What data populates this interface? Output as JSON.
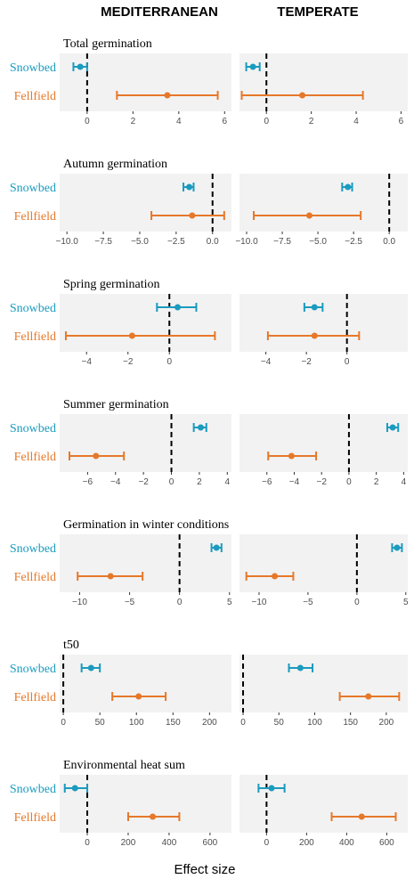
{
  "chart_data": {
    "type": "forest",
    "columns": [
      "MEDITERRANEAN",
      "TEMPERATE"
    ],
    "xlabel": "Effect size",
    "categories": [
      "Snowbed",
      "Fellfield"
    ],
    "colors": {
      "Snowbed": "#1a9bbf",
      "Fellfield": "#e6782a"
    },
    "reference_line": 0,
    "panels": [
      {
        "title": "Total germination",
        "MEDITERRANEAN": {
          "xlim": [
            -1.2,
            6.3
          ],
          "ticks": [
            0,
            2,
            4,
            6
          ],
          "Snowbed": {
            "est": -0.3,
            "lo": -0.6,
            "hi": 0.0
          },
          "Fellfield": {
            "est": 3.5,
            "lo": 1.3,
            "hi": 5.7
          }
        },
        "TEMPERATE": {
          "xlim": [
            -1.2,
            6.3
          ],
          "ticks": [
            0,
            2,
            4,
            6
          ],
          "Snowbed": {
            "est": -0.6,
            "lo": -0.9,
            "hi": -0.3
          },
          "Fellfield": {
            "est": 1.6,
            "lo": -1.1,
            "hi": 4.3
          }
        }
      },
      {
        "title": "Autumn germination",
        "MEDITERRANEAN": {
          "xlim": [
            -10.5,
            1.3
          ],
          "ticks": [
            -10.0,
            -7.5,
            -5.0,
            -2.5,
            0.0
          ],
          "Snowbed": {
            "est": -1.6,
            "lo": -2.0,
            "hi": -1.3
          },
          "Fellfield": {
            "est": -1.4,
            "lo": -4.2,
            "hi": 0.8
          }
        },
        "TEMPERATE": {
          "xlim": [
            -10.5,
            1.3
          ],
          "ticks": [
            -10.0,
            -7.5,
            -5.0,
            -2.5,
            0.0
          ],
          "Snowbed": {
            "est": -2.9,
            "lo": -3.3,
            "hi": -2.6
          },
          "Fellfield": {
            "est": -5.6,
            "lo": -9.5,
            "hi": -2.0
          }
        }
      },
      {
        "title": "Spring germination",
        "MEDITERRANEAN": {
          "xlim": [
            -5.3,
            3.0
          ],
          "ticks": [
            -4,
            -2,
            0
          ],
          "Snowbed": {
            "est": 0.4,
            "lo": -0.6,
            "hi": 1.3
          },
          "Fellfield": {
            "est": -1.8,
            "lo": -5.0,
            "hi": 2.2
          }
        },
        "TEMPERATE": {
          "xlim": [
            -5.3,
            3.0
          ],
          "ticks": [
            -4,
            -2,
            0
          ],
          "Snowbed": {
            "est": -1.6,
            "lo": -2.1,
            "hi": -1.2
          },
          "Fellfield": {
            "est": -1.6,
            "lo": -3.9,
            "hi": 0.6
          }
        }
      },
      {
        "title": "Summer germination",
        "MEDITERRANEAN": {
          "xlim": [
            -8.0,
            4.3
          ],
          "ticks": [
            -6,
            -4,
            -2,
            0,
            2,
            4
          ],
          "Snowbed": {
            "est": 2.1,
            "lo": 1.6,
            "hi": 2.5
          },
          "Fellfield": {
            "est": -5.4,
            "lo": -7.3,
            "hi": -3.4
          }
        },
        "TEMPERATE": {
          "xlim": [
            -8.0,
            4.3
          ],
          "ticks": [
            -6,
            -4,
            -2,
            0,
            2,
            4
          ],
          "Snowbed": {
            "est": 3.2,
            "lo": 2.8,
            "hi": 3.6
          },
          "Fellfield": {
            "est": -4.2,
            "lo": -5.9,
            "hi": -2.4
          }
        }
      },
      {
        "title": "Germination in winter conditions",
        "MEDITERRANEAN": {
          "xlim": [
            -12.0,
            5.2
          ],
          "ticks": [
            -10,
            -5,
            0,
            5
          ],
          "Snowbed": {
            "est": 3.7,
            "lo": 3.2,
            "hi": 4.2
          },
          "Fellfield": {
            "est": -6.9,
            "lo": -10.2,
            "hi": -3.7
          }
        },
        "TEMPERATE": {
          "xlim": [
            -12.0,
            5.2
          ],
          "ticks": [
            -10,
            -5,
            0,
            5
          ],
          "Snowbed": {
            "est": 4.1,
            "lo": 3.6,
            "hi": 4.6
          },
          "Fellfield": {
            "est": -8.4,
            "lo": -11.3,
            "hi": -6.5
          }
        }
      },
      {
        "title": "t50",
        "MEDITERRANEAN": {
          "xlim": [
            -5,
            230
          ],
          "ticks": [
            0,
            50,
            100,
            150,
            200
          ],
          "Snowbed": {
            "est": 38,
            "lo": 25,
            "hi": 50
          },
          "Fellfield": {
            "est": 103,
            "lo": 67,
            "hi": 140
          }
        },
        "TEMPERATE": {
          "xlim": [
            -5,
            230
          ],
          "ticks": [
            0,
            50,
            100,
            150,
            200
          ],
          "Snowbed": {
            "est": 80,
            "lo": 64,
            "hi": 97
          },
          "Fellfield": {
            "est": 175,
            "lo": 135,
            "hi": 218
          }
        }
      },
      {
        "title": "Environmental heat sum",
        "MEDITERRANEAN": {
          "xlim": [
            -135,
            705
          ],
          "ticks": [
            0,
            200,
            400,
            600
          ],
          "Snowbed": {
            "est": -60,
            "lo": -110,
            "hi": 0
          },
          "Fellfield": {
            "est": 320,
            "lo": 200,
            "hi": 450
          }
        },
        "TEMPERATE": {
          "xlim": [
            -135,
            705
          ],
          "ticks": [
            0,
            200,
            400,
            600
          ],
          "Snowbed": {
            "est": 25,
            "lo": -40,
            "hi": 90
          },
          "Fellfield": {
            "est": 475,
            "lo": 325,
            "hi": 645
          }
        }
      }
    ]
  }
}
